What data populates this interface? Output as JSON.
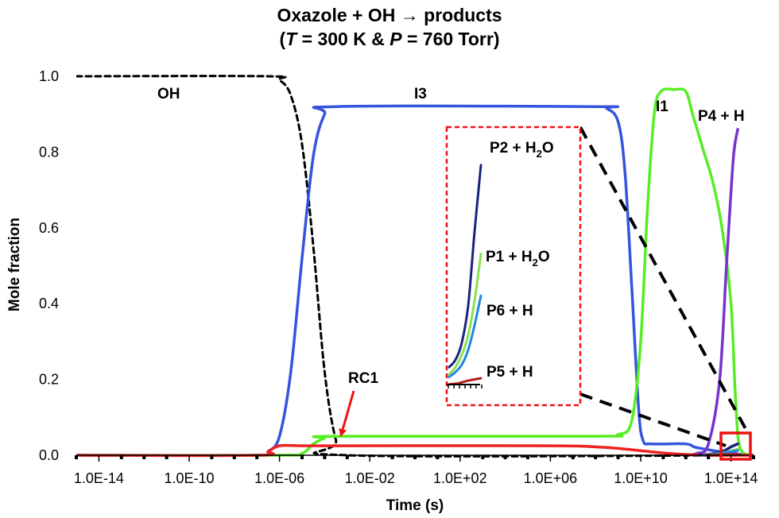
{
  "chart_data": {
    "type": "line",
    "title_line1": "Oxazole + OH → products",
    "title_line2_parts": [
      "(",
      "T",
      " = 300 K & ",
      "P",
      " = 760 Torr)"
    ],
    "xlabel": "Time (s)",
    "ylabel": "Mole fraction",
    "x_scale": "log",
    "xlim": [
      1e-15,
      1000000000000000.0
    ],
    "ylim": [
      0,
      1.0
    ],
    "x_tick_labels": [
      "1.0E-14",
      "1.0E-10",
      "1.0E-06",
      "1.0E-02",
      "1.0E+02",
      "1.0E+06",
      "1.0E+10",
      "1.0E+14"
    ],
    "x_tick_exponents": [
      -14,
      -10,
      -6,
      -2,
      2,
      6,
      10,
      14
    ],
    "y_ticks": [
      0.0,
      0.2,
      0.4,
      0.6,
      0.8,
      1.0
    ],
    "y_tick_labels": [
      "0.0",
      "0.2",
      "0.4",
      "0.6",
      "0.8",
      "1.0"
    ],
    "series": [
      {
        "name": "OH",
        "color": "#000000",
        "dashed": true,
        "points": [
          [
            -15,
            1.0
          ],
          [
            -6.5,
            1.0
          ],
          [
            -6,
            0.99
          ],
          [
            -5.5,
            0.95
          ],
          [
            -5,
            0.82
          ],
          [
            -4.5,
            0.55
          ],
          [
            -4,
            0.22
          ],
          [
            -3.5,
            0.04
          ],
          [
            -3,
            0.0
          ],
          [
            15,
            0.0
          ]
        ]
      },
      {
        "name": "I3",
        "color": "#3355dd",
        "dashed": false,
        "points": [
          [
            -15,
            0.0
          ],
          [
            -7,
            0.0
          ],
          [
            -6.5,
            0.01
          ],
          [
            -6,
            0.05
          ],
          [
            -5.5,
            0.22
          ],
          [
            -5,
            0.52
          ],
          [
            -4.5,
            0.79
          ],
          [
            -4,
            0.9
          ],
          [
            -3.5,
            0.92
          ],
          [
            8,
            0.92
          ],
          [
            8.5,
            0.915
          ],
          [
            9,
            0.88
          ],
          [
            9.3,
            0.75
          ],
          [
            9.6,
            0.45
          ],
          [
            9.9,
            0.13
          ],
          [
            10.1,
            0.04
          ],
          [
            10.5,
            0.03
          ],
          [
            12,
            0.03
          ],
          [
            12.5,
            0.02
          ],
          [
            14,
            0.005
          ],
          [
            15,
            0.0
          ]
        ]
      },
      {
        "name": "I1",
        "color": "#55ee22",
        "dashed": false,
        "points": [
          [
            -15,
            0.0
          ],
          [
            -6,
            0.0
          ],
          [
            -5,
            0.005
          ],
          [
            -4.5,
            0.03
          ],
          [
            -4,
            0.045
          ],
          [
            -3.5,
            0.05
          ],
          [
            8,
            0.05
          ],
          [
            9,
            0.055
          ],
          [
            9.6,
            0.09
          ],
          [
            10,
            0.3
          ],
          [
            10.3,
            0.65
          ],
          [
            10.6,
            0.9
          ],
          [
            10.9,
            0.96
          ],
          [
            11.5,
            0.965
          ],
          [
            12,
            0.96
          ],
          [
            12.3,
            0.9
          ],
          [
            12.8,
            0.8
          ],
          [
            13.2,
            0.72
          ],
          [
            13.6,
            0.6
          ],
          [
            14,
            0.4
          ],
          [
            14.2,
            0.15
          ],
          [
            14.4,
            0.02
          ],
          [
            15,
            0.0
          ]
        ]
      },
      {
        "name": "P4 + H",
        "color": "#7733cc",
        "dashed": false,
        "points": [
          [
            12,
            0.0
          ],
          [
            12.5,
            0.005
          ],
          [
            13,
            0.03
          ],
          [
            13.5,
            0.2
          ],
          [
            13.8,
            0.5
          ],
          [
            14.1,
            0.78
          ],
          [
            14.3,
            0.86
          ]
        ]
      },
      {
        "name": "RC1",
        "color": "#ee2222",
        "dashed": false,
        "points": [
          [
            -15,
            0.0
          ],
          [
            -7,
            0.0
          ],
          [
            -6.5,
            0.01
          ],
          [
            -6,
            0.025
          ],
          [
            -5,
            0.025
          ],
          [
            -3,
            0.025
          ],
          [
            6,
            0.025
          ],
          [
            8,
            0.022
          ],
          [
            9,
            0.018
          ],
          [
            10,
            0.012
          ],
          [
            11,
            0.006
          ],
          [
            12,
            0.002
          ],
          [
            13,
            0.0
          ],
          [
            15,
            0.0
          ]
        ]
      },
      {
        "name": "P2 + H₂O",
        "color": "#1a237e",
        "dashed": false,
        "points": [
          [
            12.6,
            0.0
          ],
          [
            13.2,
            0.004
          ],
          [
            13.7,
            0.012
          ],
          [
            14.0,
            0.022
          ],
          [
            14.3,
            0.03
          ]
        ]
      },
      {
        "name": "P1 + H₂O",
        "color": "#8be04e",
        "dashed": false,
        "points": [
          [
            12.8,
            0.0
          ],
          [
            13.4,
            0.004
          ],
          [
            13.8,
            0.008
          ],
          [
            14.1,
            0.013
          ],
          [
            14.3,
            0.016
          ]
        ]
      },
      {
        "name": "P6 + H",
        "color": "#1e88e5",
        "dashed": false,
        "points": [
          [
            12.8,
            0.0
          ],
          [
            13.4,
            0.003
          ],
          [
            13.8,
            0.007
          ],
          [
            14.1,
            0.01
          ],
          [
            14.3,
            0.012
          ]
        ]
      },
      {
        "name": "P5 + H",
        "color": "#b71c1c",
        "dashed": false,
        "points": [
          [
            12.9,
            0.0
          ],
          [
            13.5,
            0.001
          ],
          [
            14.0,
            0.002
          ],
          [
            14.3,
            0.003
          ]
        ]
      }
    ],
    "inset_series": [
      {
        "name": "P2 + H₂O",
        "color": "#1a237e",
        "values": [
          [
            0.0,
            0.09
          ],
          [
            0.2,
            0.12
          ],
          [
            0.4,
            0.19
          ],
          [
            0.6,
            0.34
          ],
          [
            0.8,
            0.64
          ],
          [
            1.0,
            0.91
          ]
        ]
      },
      {
        "name": "P1 + H₂O",
        "color": "#8be04e",
        "values": [
          [
            0.0,
            0.06
          ],
          [
            0.2,
            0.09
          ],
          [
            0.4,
            0.14
          ],
          [
            0.6,
            0.22
          ],
          [
            0.8,
            0.36
          ],
          [
            1.0,
            0.55
          ]
        ]
      },
      {
        "name": "P6 + H",
        "color": "#1e88e5",
        "values": [
          [
            0.0,
            0.05
          ],
          [
            0.2,
            0.07
          ],
          [
            0.4,
            0.1
          ],
          [
            0.6,
            0.16
          ],
          [
            0.8,
            0.26
          ],
          [
            1.0,
            0.38
          ]
        ]
      },
      {
        "name": "P5 + H",
        "color": "#b71c1c",
        "values": [
          [
            0.0,
            0.02
          ],
          [
            0.3,
            0.025
          ],
          [
            0.6,
            0.035
          ],
          [
            1.0,
            0.045
          ]
        ]
      }
    ],
    "annotations": {
      "oh": "OH",
      "i3": "I3",
      "i1": "I1",
      "p4": "P4 + H",
      "rc1": "RC1",
      "p5": "P5 + H",
      "p6": "P6 + H"
    },
    "colors": {
      "zoom_box": "#ee1111",
      "inset_border": "#ee1111",
      "arrow": "#ee1111"
    },
    "legend": "none",
    "grid": false
  }
}
